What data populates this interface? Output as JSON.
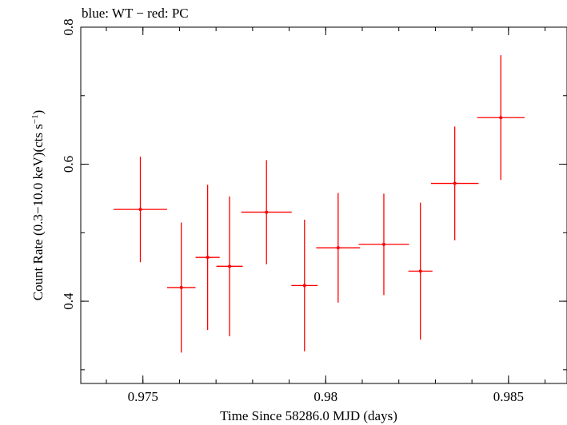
{
  "chart_data": {
    "type": "scatter",
    "title": "blue: WT − red: PC",
    "xlabel": "Time Since 58286.0 MJD (days)",
    "ylabel_parts": [
      "Count Rate (0.3−10.0 keV)(cts s",
      "−1",
      ")"
    ],
    "xlim": [
      0.9733,
      0.9866
    ],
    "ylim": [
      0.28,
      0.8
    ],
    "xticks": [
      {
        "value": 0.975,
        "label": "0.975"
      },
      {
        "value": 0.98,
        "label": "0.98"
      },
      {
        "value": 0.985,
        "label": "0.985"
      }
    ],
    "xminor_step": 0.001,
    "yticks": [
      {
        "value": 0.4,
        "label": "0.4"
      },
      {
        "value": 0.6,
        "label": "0.6"
      },
      {
        "value": 0.8,
        "label": "0.8"
      }
    ],
    "yminor_step": 0.1,
    "grid": false,
    "series": [
      {
        "color": "#ff0000",
        "points": [
          {
            "x": 0.97493,
            "xerr": 0.00073,
            "y": 0.534,
            "yerr": 0.077
          },
          {
            "x": 0.97605,
            "xerr": 0.00039,
            "y": 0.42,
            "yerr": 0.095
          },
          {
            "x": 0.97677,
            "xerr": 0.00033,
            "y": 0.464,
            "yerr": 0.106
          },
          {
            "x": 0.97737,
            "xerr": 0.00036,
            "y": 0.451,
            "yerr": 0.102
          },
          {
            "x": 0.97838,
            "xerr": 0.00069,
            "y": 0.53,
            "yerr": 0.076
          },
          {
            "x": 0.97942,
            "xerr": 0.00036,
            "y": 0.423,
            "yerr": 0.096
          },
          {
            "x": 0.98034,
            "xerr": 0.0006,
            "y": 0.478,
            "yerr": 0.08
          },
          {
            "x": 0.98159,
            "xerr": 0.00069,
            "y": 0.483,
            "yerr": 0.074
          },
          {
            "x": 0.98259,
            "xerr": 0.00033,
            "y": 0.444,
            "yerr": 0.1
          },
          {
            "x": 0.98353,
            "xerr": 0.00065,
            "y": 0.572,
            "yerr": 0.083
          },
          {
            "x": 0.98479,
            "xerr": 0.00065,
            "y": 0.668,
            "yerr": 0.091
          }
        ]
      }
    ]
  }
}
